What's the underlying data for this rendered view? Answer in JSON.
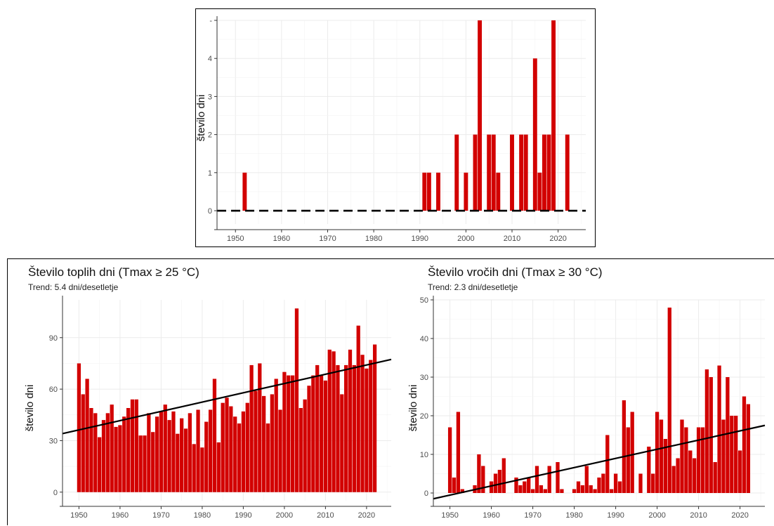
{
  "colors": {
    "bar": "#d20000",
    "trend": "#000000",
    "grid": "#ebebeb",
    "zero_line": "#000000"
  },
  "chart_data": [
    {
      "type": "bar",
      "title": "",
      "subtitle": "",
      "xlabel": "",
      "ylabel": "število dni",
      "xlim": [
        1946,
        2026
      ],
      "ylim": [
        -0.35,
        5
      ],
      "xticks": [
        "1950",
        "1960",
        "1970",
        "1980",
        "1990",
        "2000",
        "2010",
        "2020"
      ],
      "yticks": [
        "0",
        "1",
        "2",
        "3",
        "4",
        "-"
      ],
      "grid": true,
      "x": [
        1950,
        1951,
        1952,
        1953,
        1954,
        1955,
        1956,
        1957,
        1958,
        1959,
        1960,
        1961,
        1962,
        1963,
        1964,
        1965,
        1966,
        1967,
        1968,
        1969,
        1970,
        1971,
        1972,
        1973,
        1974,
        1975,
        1976,
        1977,
        1978,
        1979,
        1980,
        1981,
        1982,
        1983,
        1984,
        1985,
        1986,
        1987,
        1988,
        1989,
        1990,
        1991,
        1992,
        1993,
        1994,
        1995,
        1996,
        1997,
        1998,
        1999,
        2000,
        2001,
        2002,
        2003,
        2004,
        2005,
        2006,
        2007,
        2008,
        2009,
        2010,
        2011,
        2012,
        2013,
        2014,
        2015,
        2016,
        2017,
        2018,
        2019,
        2020,
        2021,
        2022
      ],
      "values": [
        0,
        0,
        1,
        0,
        0,
        0,
        0,
        0,
        0,
        0,
        0,
        0,
        0,
        0,
        0,
        0,
        0,
        0,
        0,
        0,
        0,
        0,
        0,
        0,
        0,
        0,
        0,
        0,
        0,
        0,
        0,
        0,
        0,
        0,
        0,
        0,
        0,
        0,
        0,
        0,
        0,
        1,
        1,
        0,
        1,
        0,
        0,
        0,
        2,
        0,
        1,
        0,
        2,
        5,
        0,
        2,
        2,
        1,
        0,
        0,
        2,
        0,
        2,
        2,
        0,
        4,
        1,
        2,
        2,
        5,
        0,
        0,
        2
      ],
      "zero_line": "dashed"
    },
    {
      "type": "bar",
      "title": "Število toplih dni (Tmax ≥ 25 °C)",
      "subtitle": "Trend: 5.4 dni/desetletje",
      "xlabel": "",
      "ylabel": "število dni",
      "xlim": [
        1946,
        2026
      ],
      "ylim": [
        -5,
        112
      ],
      "xticks": [
        "1950",
        "1960",
        "1970",
        "1980",
        "1990",
        "2000",
        "2010",
        "2020"
      ],
      "yticks": [
        "0",
        "30",
        "60",
        "90"
      ],
      "grid": true,
      "x": [
        1950,
        1951,
        1952,
        1953,
        1954,
        1955,
        1956,
        1957,
        1958,
        1959,
        1960,
        1961,
        1962,
        1963,
        1964,
        1965,
        1966,
        1967,
        1968,
        1969,
        1970,
        1971,
        1972,
        1973,
        1974,
        1975,
        1976,
        1977,
        1978,
        1979,
        1980,
        1981,
        1982,
        1983,
        1984,
        1985,
        1986,
        1987,
        1988,
        1989,
        1990,
        1991,
        1992,
        1993,
        1994,
        1995,
        1996,
        1997,
        1998,
        1999,
        2000,
        2001,
        2002,
        2003,
        2004,
        2005,
        2006,
        2007,
        2008,
        2009,
        2010,
        2011,
        2012,
        2013,
        2014,
        2015,
        2016,
        2017,
        2018,
        2019,
        2020,
        2021,
        2022
      ],
      "values": [
        75,
        57,
        66,
        49,
        46,
        32,
        42,
        46,
        51,
        38,
        39,
        44,
        49,
        54,
        54,
        33,
        33,
        46,
        35,
        44,
        47,
        51,
        42,
        47,
        34,
        43,
        37,
        46,
        28,
        48,
        26,
        41,
        48,
        66,
        29,
        52,
        55,
        50,
        44,
        40,
        47,
        52,
        74,
        59,
        75,
        56,
        40,
        57,
        66,
        48,
        70,
        68,
        68,
        107,
        49,
        54,
        62,
        68,
        74,
        68,
        65,
        83,
        82,
        74,
        57,
        74,
        83,
        74,
        97,
        80,
        72,
        77,
        86
      ],
      "trend": {
        "x": [
          1946,
          2026
        ],
        "y": [
          34.1,
          77.3
        ]
      }
    },
    {
      "type": "bar",
      "title": "Število vročih dni (Tmax ≥ 30 °C)",
      "subtitle": "Trend: 2.3 dni/desetletje",
      "xlabel": "",
      "ylabel": "število dni",
      "xlim": [
        1946,
        2026
      ],
      "ylim": [
        -2,
        50
      ],
      "xticks": [
        "1950",
        "1960",
        "1970",
        "1980",
        "1990",
        "2000",
        "2010",
        "2020"
      ],
      "yticks": [
        "0",
        "10",
        "20",
        "30",
        "40",
        "50"
      ],
      "grid": true,
      "x": [
        1950,
        1951,
        1952,
        1953,
        1954,
        1955,
        1956,
        1957,
        1958,
        1959,
        1960,
        1961,
        1962,
        1963,
        1964,
        1965,
        1966,
        1967,
        1968,
        1969,
        1970,
        1971,
        1972,
        1973,
        1974,
        1975,
        1976,
        1977,
        1978,
        1979,
        1980,
        1981,
        1982,
        1983,
        1984,
        1985,
        1986,
        1987,
        1988,
        1989,
        1990,
        1991,
        1992,
        1993,
        1994,
        1995,
        1996,
        1997,
        1998,
        1999,
        2000,
        2001,
        2002,
        2003,
        2004,
        2005,
        2006,
        2007,
        2008,
        2009,
        2010,
        2011,
        2012,
        2013,
        2014,
        2015,
        2016,
        2017,
        2018,
        2019,
        2020,
        2021,
        2022
      ],
      "values": [
        17,
        4,
        21,
        1,
        0,
        0,
        2,
        10,
        7,
        0,
        3,
        5,
        6,
        9,
        0,
        0,
        4,
        2,
        3,
        4,
        1,
        7,
        2,
        1,
        7,
        0,
        8,
        1,
        0,
        0,
        1,
        3,
        2,
        7,
        2,
        1,
        4,
        5,
        15,
        1,
        5,
        3,
        24,
        17,
        21,
        0,
        5,
        0,
        12,
        5,
        21,
        19,
        14,
        48,
        7,
        9,
        19,
        17,
        11,
        9,
        17,
        17,
        32,
        30,
        8,
        33,
        19,
        30,
        20,
        20,
        11,
        25,
        23
      ],
      "trend": {
        "x": [
          1946,
          2026
        ],
        "y": [
          -1.5,
          17.5
        ]
      }
    }
  ]
}
